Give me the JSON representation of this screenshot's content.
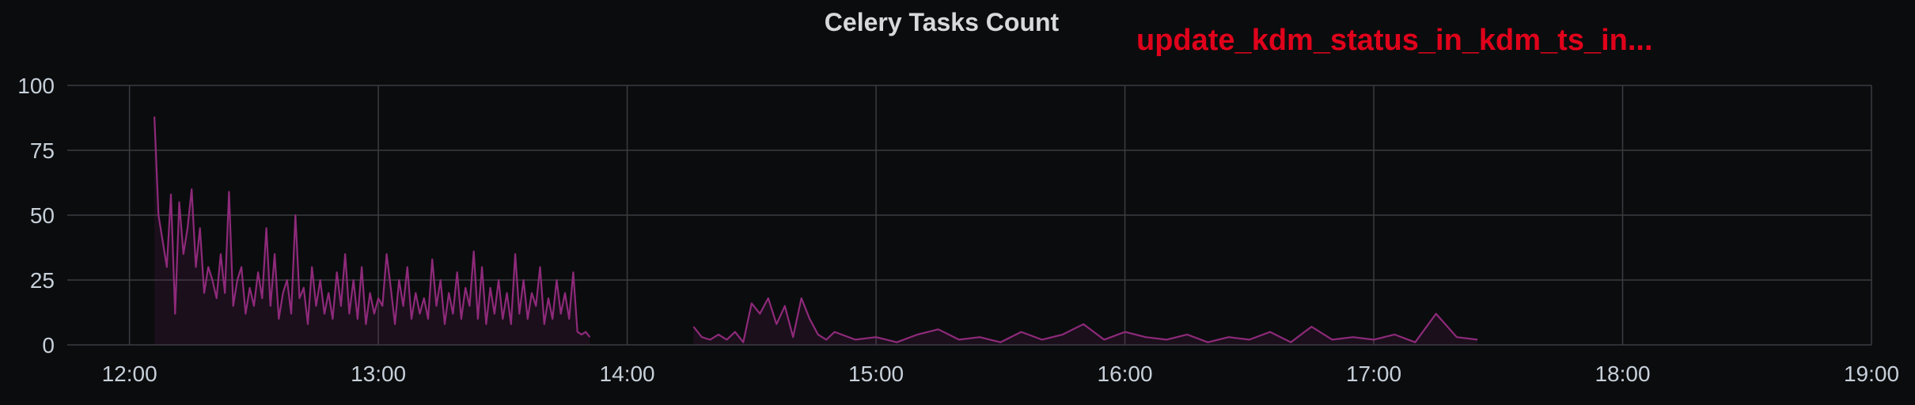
{
  "panel": {
    "title": "Celery Tasks Count",
    "annotation": "update_kdm_status_in_kdm_ts_in..."
  },
  "colors": {
    "background": "#0b0c0e",
    "grid": "#3a3c40",
    "series": "#8e2a7a",
    "annotation": "#e0021b",
    "text": "#c7d0d9"
  },
  "chart_data": {
    "type": "line",
    "title": "Celery Tasks Count",
    "xlabel": "",
    "ylabel": "",
    "x_ticks": [
      "12:00",
      "13:00",
      "14:00",
      "15:00",
      "16:00",
      "17:00",
      "18:00",
      "19:00"
    ],
    "y_ticks": [
      "0",
      "25",
      "50",
      "75",
      "100"
    ],
    "xlim": [
      "11:45",
      "19:00"
    ],
    "ylim": [
      0,
      100
    ],
    "grid": true,
    "legend": "none",
    "series": [
      {
        "name": "",
        "fill": true,
        "segments": [
          {
            "x": [
              "12:06",
              "12:07",
              "12:08",
              "12:09",
              "12:10",
              "12:11",
              "12:12",
              "12:13",
              "12:14",
              "12:15",
              "12:16",
              "12:17",
              "12:18",
              "12:19",
              "12:20",
              "12:21",
              "12:22",
              "12:23",
              "12:24",
              "12:25",
              "12:26",
              "12:27",
              "12:28",
              "12:29",
              "12:30",
              "12:31",
              "12:32",
              "12:33",
              "12:34",
              "12:35",
              "12:36",
              "12:37",
              "12:38",
              "12:39",
              "12:40",
              "12:41",
              "12:42",
              "12:43",
              "12:44",
              "12:45",
              "12:46",
              "12:47",
              "12:48",
              "12:49",
              "12:50",
              "12:51",
              "12:52",
              "12:53",
              "12:54",
              "12:55",
              "12:56",
              "12:57",
              "12:58",
              "12:59",
              "13:00",
              "13:01",
              "13:02",
              "13:03",
              "13:04",
              "13:05",
              "13:06",
              "13:07",
              "13:08",
              "13:09",
              "13:10",
              "13:11",
              "13:12",
              "13:13",
              "13:14",
              "13:15",
              "13:16",
              "13:17",
              "13:18",
              "13:19",
              "13:20",
              "13:21",
              "13:22",
              "13:23",
              "13:24",
              "13:25",
              "13:26",
              "13:27",
              "13:28",
              "13:29",
              "13:30",
              "13:31",
              "13:32",
              "13:33",
              "13:34",
              "13:35",
              "13:36",
              "13:37",
              "13:38",
              "13:39",
              "13:40",
              "13:41",
              "13:42",
              "13:43",
              "13:44",
              "13:45",
              "13:46",
              "13:47",
              "13:48",
              "13:49",
              "13:50",
              "13:51"
            ],
            "y": [
              88,
              50,
              40,
              30,
              58,
              12,
              55,
              35,
              45,
              60,
              30,
              45,
              20,
              30,
              25,
              18,
              35,
              20,
              59,
              15,
              25,
              30,
              12,
              22,
              15,
              28,
              18,
              45,
              15,
              35,
              10,
              20,
              25,
              12,
              50,
              18,
              22,
              8,
              30,
              15,
              25,
              12,
              20,
              10,
              28,
              15,
              35,
              12,
              25,
              10,
              30,
              8,
              20,
              12,
              18,
              15,
              35,
              22,
              8,
              25,
              15,
              30,
              10,
              20,
              12,
              18,
              10,
              33,
              15,
              25,
              8,
              20,
              12,
              28,
              10,
              22,
              15,
              36,
              10,
              30,
              8,
              22,
              12,
              25,
              10,
              20,
              8,
              35,
              12,
              25,
              10,
              20,
              15,
              30,
              8,
              18,
              10,
              25,
              12,
              20,
              10,
              28,
              5,
              4,
              5,
              3
            ]
          },
          {
            "x": [
              "14:16",
              "14:18",
              "14:20",
              "14:22",
              "14:24",
              "14:26",
              "14:28",
              "14:30",
              "14:32",
              "14:34",
              "14:36",
              "14:38",
              "14:40",
              "14:42",
              "14:44",
              "14:46",
              "14:48",
              "14:50",
              "14:55",
              "15:00",
              "15:05",
              "15:10",
              "15:15",
              "15:20",
              "15:25",
              "15:30",
              "15:35",
              "15:40",
              "15:45",
              "15:50",
              "15:55",
              "16:00",
              "16:05",
              "16:10",
              "16:15",
              "16:20",
              "16:25",
              "16:30",
              "16:35",
              "16:40",
              "16:45",
              "16:50",
              "16:55",
              "17:00",
              "17:05",
              "17:10",
              "17:15",
              "17:20",
              "17:25"
            ],
            "y": [
              7,
              3,
              2,
              4,
              2,
              5,
              1,
              16,
              12,
              18,
              8,
              15,
              3,
              18,
              10,
              4,
              2,
              5,
              2,
              3,
              1,
              4,
              6,
              2,
              3,
              1,
              5,
              2,
              4,
              8,
              2,
              5,
              3,
              2,
              4,
              1,
              3,
              2,
              5,
              1,
              7,
              2,
              3,
              2,
              4,
              1,
              12,
              3,
              2
            ]
          }
        ]
      }
    ]
  }
}
